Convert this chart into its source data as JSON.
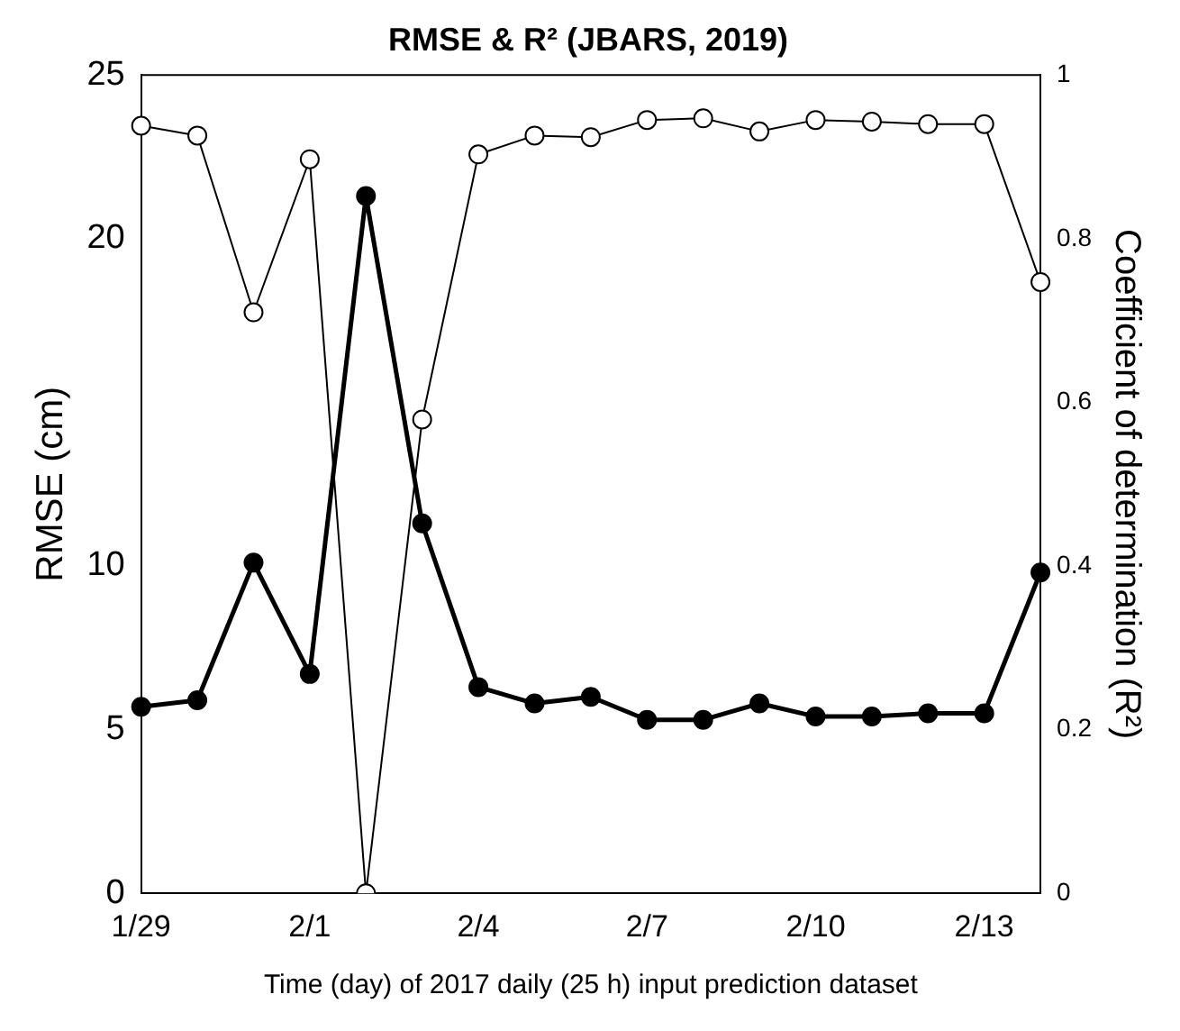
{
  "chart_data": {
    "type": "line",
    "title": "RMSE & R² (JBARS, 2019)",
    "xlabel": "Time (day) of 2017 daily (25 h) input prediction dataset",
    "ylabel": "RMSE (cm)",
    "y2label": "Coefficient of determination (R²)",
    "categories": [
      "1/29",
      null,
      null,
      "2/1",
      null,
      null,
      "2/4",
      null,
      null,
      "2/7",
      null,
      null,
      "2/10",
      null,
      null,
      "2/13",
      null
    ],
    "series": [
      {
        "color": "#000000",
        "values": [
          5.7,
          5.9,
          10.1,
          6.7,
          21.3,
          11.3,
          6.3,
          5.8,
          6.0,
          5.3,
          5.3,
          5.8,
          5.4,
          5.4,
          5.5,
          5.5,
          9.8
        ]
      },
      {
        "color": "#000000",
        "axis": "y2",
        "values": [
          0.938,
          0.926,
          0.71,
          0.897,
          0,
          0.579,
          0.903,
          0.926,
          0.924,
          0.945,
          0.947,
          0.931,
          0.945,
          0.943,
          0.94,
          0.94,
          0.747
        ]
      }
    ],
    "ylim": [
      0,
      25
    ],
    "yticks": [
      0,
      5,
      10,
      20,
      25
    ],
    "y2lim": [
      0,
      1
    ],
    "y2ticks": [
      0,
      0.2,
      0.4,
      0.6,
      0.8,
      1
    ],
    "grid": false,
    "legend": false,
    "marker": "circle",
    "line_style": "solid"
  }
}
